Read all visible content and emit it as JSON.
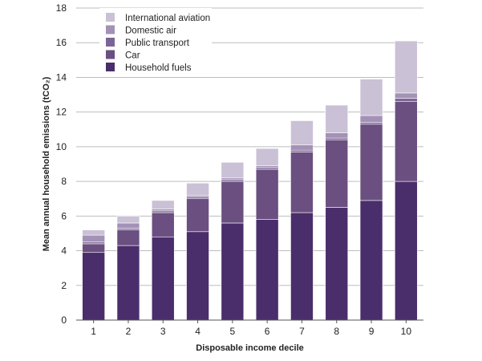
{
  "chart_data": {
    "type": "bar",
    "stacked": true,
    "title": "",
    "xlabel": "Disposable income decile",
    "ylabel": "Mean annual household emissions (tCO₂)",
    "categories": [
      "1",
      "2",
      "3",
      "4",
      "5",
      "6",
      "7",
      "8",
      "9",
      "10"
    ],
    "ylim": [
      0,
      18
    ],
    "yticks": [
      "0",
      "2",
      "4",
      "6",
      "8",
      "10",
      "12",
      "14",
      "16",
      "18"
    ],
    "grid": true,
    "legend_position": "top-left",
    "series": [
      {
        "name": "Household fuels",
        "color": "#4a2e6b",
        "values": [
          3.9,
          4.3,
          4.8,
          5.1,
          5.6,
          5.8,
          6.2,
          6.5,
          6.9,
          8.0
        ]
      },
      {
        "name": "Car",
        "color": "#6a4f80",
        "values": [
          0.5,
          0.9,
          1.4,
          1.9,
          2.4,
          2.9,
          3.5,
          3.9,
          4.4,
          4.6
        ]
      },
      {
        "name": "Public transport",
        "color": "#7c6596",
        "values": [
          0.1,
          0.1,
          0.1,
          0.1,
          0.1,
          0.1,
          0.1,
          0.1,
          0.1,
          0.2
        ]
      },
      {
        "name": "Domestic air",
        "color": "#a391b6",
        "values": [
          0.4,
          0.3,
          0.1,
          0.1,
          0.1,
          0.1,
          0.3,
          0.3,
          0.4,
          0.3
        ]
      },
      {
        "name": "International aviation",
        "color": "#cac1d6",
        "values": [
          0.3,
          0.4,
          0.5,
          0.7,
          0.9,
          1.0,
          1.4,
          1.6,
          2.1,
          3.0
        ]
      }
    ],
    "legend_order": [
      "International aviation",
      "Domestic air",
      "Public transport",
      "Car",
      "Household fuels"
    ]
  }
}
